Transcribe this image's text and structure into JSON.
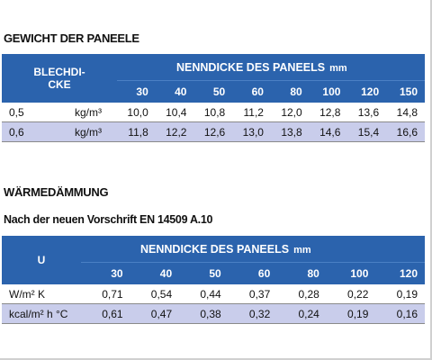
{
  "sections": [
    {
      "title": "GEWICHT DER PANEELE",
      "table": {
        "corner": [
          "BLECHDI-",
          "CKE"
        ],
        "heading": "NENNDICKE DES PANEELS",
        "unit": "mm",
        "columns": [
          "30",
          "40",
          "50",
          "60",
          "80",
          "100",
          "120",
          "150"
        ],
        "rows": [
          [
            "0,5",
            "kg/m³",
            "10,0",
            "10,4",
            "10,8",
            "11,2",
            "12,0",
            "12,8",
            "13,6",
            "14,8"
          ],
          [
            "0,6",
            "kg/m³",
            "11,8",
            "12,2",
            "12,6",
            "13,0",
            "13,8",
            "14,6",
            "15,4",
            "16,6"
          ]
        ]
      }
    },
    {
      "title": "WÄRMEDÄMMUNG",
      "subtitle": "Nach der neuen Vorschrift EN 14509 A.10",
      "table": {
        "corner": [
          "U"
        ],
        "heading": "NENNDICKE DES PANEELS",
        "unit": "mm",
        "columns": [
          "30",
          "40",
          "50",
          "60",
          "80",
          "100",
          "120"
        ],
        "rows": [
          [
            "W/m² K",
            "0,71",
            "0,54",
            "0,44",
            "0,37",
            "0,28",
            "0,22",
            "0,19"
          ],
          [
            "kcal/m² h °C",
            "0,61",
            "0,47",
            "0,38",
            "0,32",
            "0,24",
            "0,19",
            "0,16"
          ]
        ]
      }
    }
  ]
}
